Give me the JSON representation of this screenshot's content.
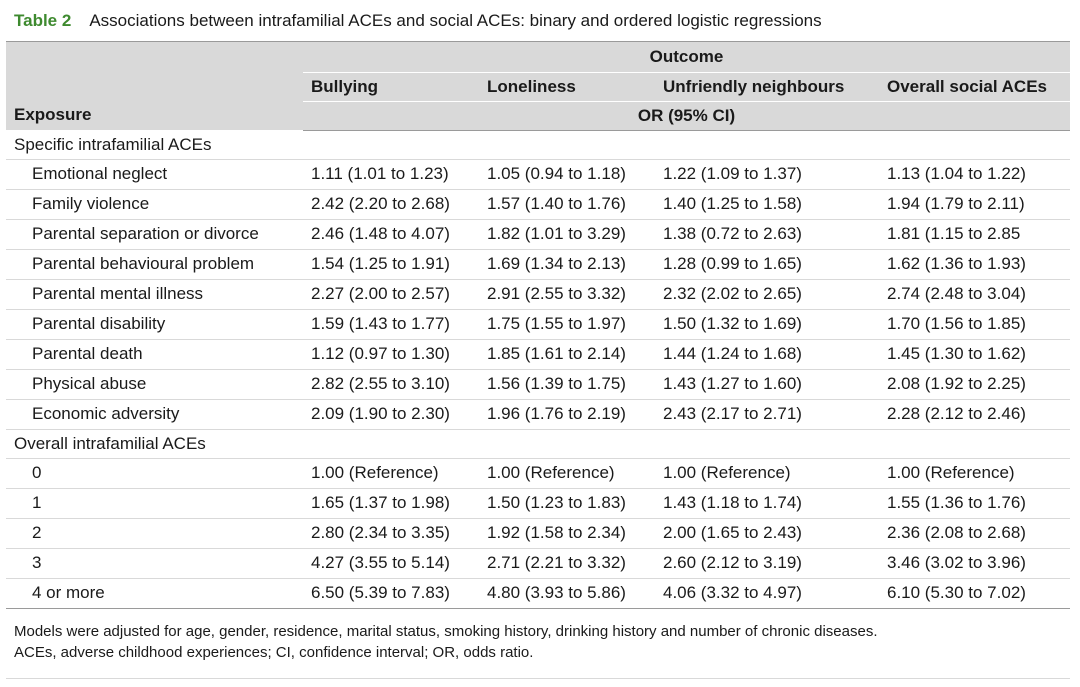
{
  "caption": {
    "label": "Table 2",
    "title": "Associations between intrafamilial ACEs and social ACEs: binary and ordered logistic regressions"
  },
  "header": {
    "outcome": "Outcome",
    "exposure": "Exposure",
    "or_ci": "OR (95% CI)",
    "columns": [
      "Bullying",
      "Loneliness",
      "Unfriendly neighbours",
      "Overall social ACEs"
    ]
  },
  "sections": [
    {
      "title": "Specific intrafamilial ACEs",
      "rows": [
        {
          "label": "Emotional neglect",
          "values": [
            "1.11 (1.01 to 1.23)",
            "1.05 (0.94 to 1.18)",
            "1.22 (1.09 to 1.37)",
            "1.13 (1.04 to 1.22)"
          ]
        },
        {
          "label": "Family violence",
          "values": [
            "2.42 (2.20 to 2.68)",
            "1.57 (1.40 to 1.76)",
            "1.40 (1.25 to 1.58)",
            "1.94 (1.79 to 2.11)"
          ]
        },
        {
          "label": "Parental separation or divorce",
          "values": [
            "2.46 (1.48 to 4.07)",
            "1.82 (1.01 to 3.29)",
            "1.38 (0.72 to 2.63)",
            "1.81 (1.15 to 2.85"
          ]
        },
        {
          "label": "Parental behavioural problem",
          "values": [
            "1.54 (1.25 to 1.91)",
            "1.69 (1.34 to 2.13)",
            "1.28 (0.99 to 1.65)",
            "1.62 (1.36 to 1.93)"
          ]
        },
        {
          "label": "Parental mental illness",
          "values": [
            "2.27 (2.00 to 2.57)",
            "2.91 (2.55 to 3.32)",
            "2.32 (2.02 to 2.65)",
            "2.74 (2.48 to 3.04)"
          ]
        },
        {
          "label": "Parental disability",
          "values": [
            "1.59 (1.43 to 1.77)",
            "1.75 (1.55 to 1.97)",
            "1.50 (1.32 to 1.69)",
            "1.70 (1.56 to 1.85)"
          ]
        },
        {
          "label": "Parental death",
          "values": [
            "1.12 (0.97 to 1.30)",
            "1.85 (1.61 to 2.14)",
            "1.44 (1.24 to 1.68)",
            "1.45 (1.30 to 1.62)"
          ]
        },
        {
          "label": "Physical abuse",
          "values": [
            "2.82 (2.55 to 3.10)",
            "1.56 (1.39 to 1.75)",
            "1.43 (1.27 to 1.60)",
            "2.08 (1.92 to 2.25)"
          ]
        },
        {
          "label": "Economic adversity",
          "values": [
            "2.09 (1.90 to 2.30)",
            "1.96 (1.76 to 2.19)",
            "2.43 (2.17 to 2.71)",
            "2.28 (2.12 to 2.46)"
          ]
        }
      ]
    },
    {
      "title": "Overall intrafamilial ACEs",
      "rows": [
        {
          "label": "0",
          "values": [
            "1.00 (Reference)",
            "1.00 (Reference)",
            "1.00 (Reference)",
            "1.00 (Reference)"
          ]
        },
        {
          "label": "1",
          "values": [
            "1.65 (1.37 to 1.98)",
            "1.50 (1.23 to 1.83)",
            "1.43 (1.18 to 1.74)",
            "1.55 (1.36 to 1.76)"
          ]
        },
        {
          "label": "2",
          "values": [
            "2.80 (2.34 to 3.35)",
            "1.92 (1.58 to 2.34)",
            "2.00 (1.65 to 2.43)",
            "2.36 (2.08 to 2.68)"
          ]
        },
        {
          "label": "3",
          "values": [
            "4.27 (3.55 to 5.14)",
            "2.71 (2.21 to 3.32)",
            "2.60 (2.12 to 3.19)",
            "3.46 (3.02 to 3.96)"
          ]
        },
        {
          "label": "4 or more",
          "values": [
            "6.50 (5.39 to 7.83)",
            "4.80 (3.93 to 5.86)",
            "4.06 (3.32 to 4.97)",
            "6.10 (5.30 to 7.02)"
          ]
        }
      ]
    }
  ],
  "footnotes": [
    "Models were adjusted for age, gender, residence, marital status, smoking history, drinking history and number of chronic diseases.",
    "ACEs, adverse childhood experiences; CI, confidence interval; OR, odds ratio."
  ],
  "colors": {
    "label_green": "#3e8a2f",
    "header_gray": "#d9d9d9"
  }
}
